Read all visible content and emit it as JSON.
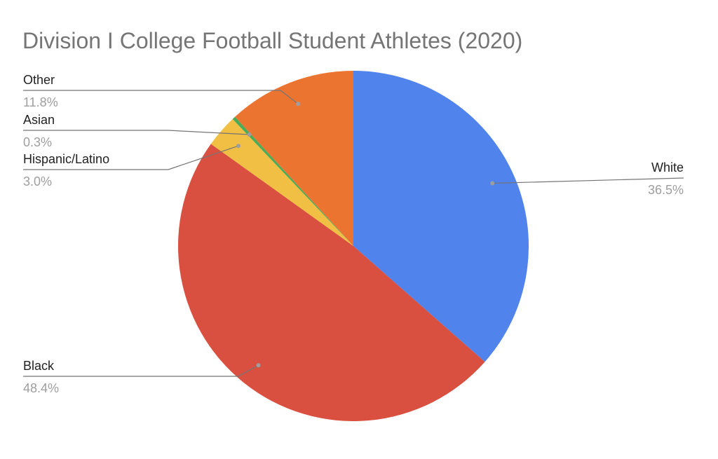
{
  "chart_data": {
    "type": "pie",
    "title": "Division I College Football Student Athletes (2020)",
    "slices": [
      {
        "label": "White",
        "value": 36.5,
        "value_label": "36.5%",
        "color": "#5083ec"
      },
      {
        "label": "Black",
        "value": 48.4,
        "value_label": "48.4%",
        "color": "#d95040"
      },
      {
        "label": "Hispanic/Latino",
        "value": 3.0,
        "value_label": "3.0%",
        "color": "#f0bf43"
      },
      {
        "label": "Asian",
        "value": 0.3,
        "value_label": "0.3%",
        "color": "#4daa57"
      },
      {
        "label": "Other",
        "value": 11.8,
        "value_label": "11.8%",
        "color": "#eb7430"
      }
    ],
    "start_angle": "top, clockwise",
    "legend": "none"
  }
}
